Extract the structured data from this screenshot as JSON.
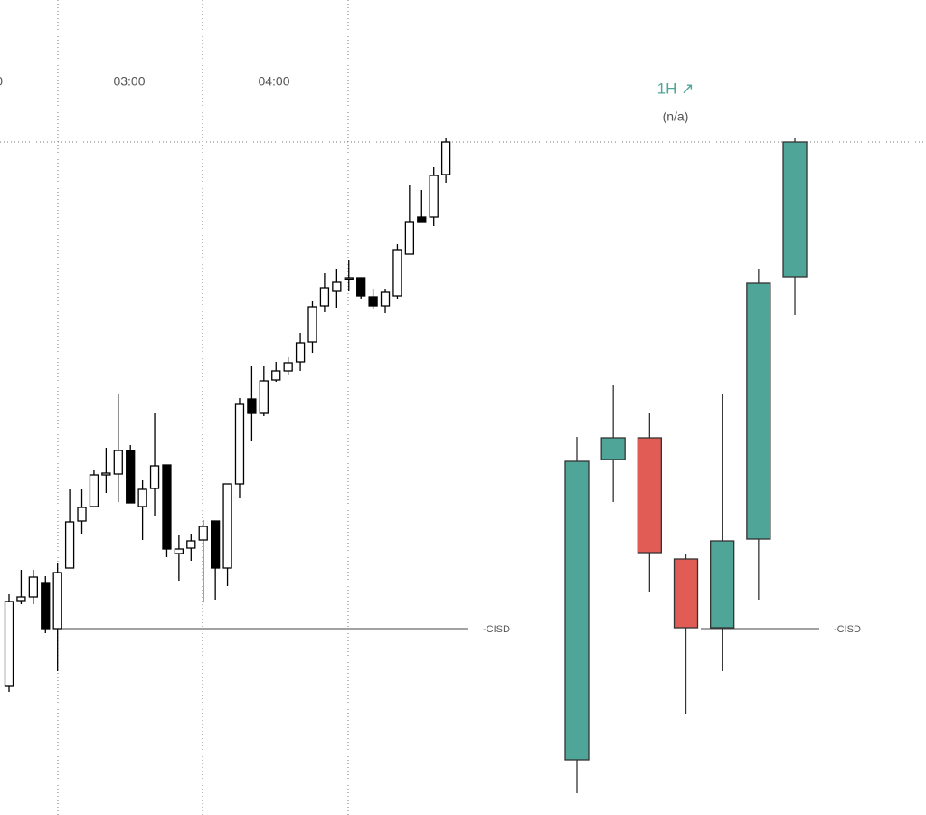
{
  "chart_data": [
    {
      "type": "candlestick",
      "time_labels": [
        "0",
        "03:00",
        "04:00"
      ],
      "open": [
        143,
        237,
        241,
        257,
        206,
        273,
        325,
        341,
        376,
        377,
        403,
        341,
        361,
        387,
        289,
        295,
        304,
        325,
        273,
        366,
        460,
        444,
        481,
        491,
        501,
        523,
        563,
        579,
        593,
        594,
        573,
        563,
        574,
        620,
        661,
        661,
        708
      ],
      "high": [
        244,
        271,
        271,
        264,
        279,
        360,
        360,
        381,
        406,
        465,
        409,
        370,
        444,
        387,
        309,
        311,
        326,
        325,
        366,
        461,
        496,
        496,
        501,
        506,
        533,
        568,
        599,
        604,
        614,
        594,
        581,
        581,
        631,
        696,
        691,
        716,
        748
      ],
      "low": [
        136,
        233,
        233,
        201,
        159,
        273,
        311,
        341,
        356,
        346,
        345,
        304,
        331,
        285,
        259,
        281,
        236,
        238,
        253,
        351,
        414,
        441,
        479,
        486,
        491,
        511,
        556,
        561,
        579,
        571,
        559,
        555,
        571,
        620,
        656,
        651,
        699
      ],
      "close": [
        236,
        241,
        263,
        206,
        268,
        324,
        340,
        376,
        378,
        403,
        345,
        360,
        386,
        294,
        294,
        303,
        319,
        273,
        366,
        454,
        444,
        480,
        491,
        500,
        522,
        562,
        583,
        589,
        594,
        574,
        563,
        578,
        625,
        656,
        656,
        707,
        744
      ],
      "up_color": "#ffffff",
      "down_color": "#000000",
      "border_color": "#000000",
      "cisd_level": 206,
      "cisd_label": "-CISD",
      "high_level": 744,
      "ylim": [
        0,
        901
      ]
    },
    {
      "type": "candlestick",
      "title": "1H ↗",
      "subtitle": "(n/a)",
      "open": [
        61,
        393,
        417,
        283,
        207,
        305,
        595
      ],
      "high": [
        418,
        475,
        444,
        288,
        465,
        604,
        748
      ],
      "low": [
        24,
        346,
        247,
        112,
        159,
        238,
        553
      ],
      "close": [
        391,
        417,
        290,
        207,
        303,
        588,
        744
      ],
      "up_color": "#4fa597",
      "down_color": "#e05c54",
      "border_color": "#333333",
      "cisd_level": 206,
      "cisd_label": "-CISD",
      "ylim": [
        0,
        901
      ]
    }
  ]
}
